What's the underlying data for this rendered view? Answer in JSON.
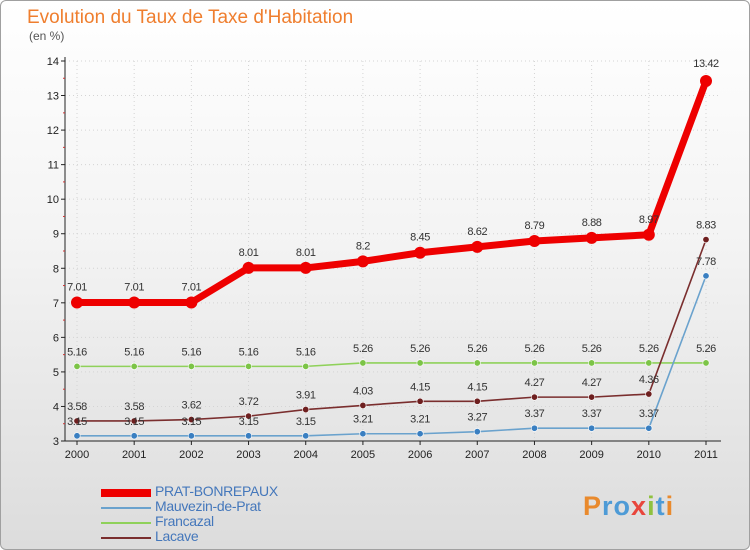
{
  "title": "Evolution du Taux de Taxe d'Habitation",
  "unit": "(en %)",
  "brand": {
    "name": "Proxiti",
    "letter_colors": [
      "#e98a2d",
      "#4e9bd6",
      "#4e9bd6",
      "#e8463c",
      "#8fc13f",
      "#4e9bd6",
      "#e98a2d"
    ]
  },
  "chart_data": {
    "type": "line",
    "title": "Evolution du Taux de Taxe d'Habitation",
    "ylabel": "(en %)",
    "xlabel": "",
    "x": [
      "2000",
      "2001",
      "2002",
      "2003",
      "2004",
      "2005",
      "2006",
      "2007",
      "2008",
      "2009",
      "2010",
      "2011"
    ],
    "ylim": [
      3,
      14
    ],
    "yticks": [
      "3",
      "4",
      "5",
      "6",
      "7",
      "8",
      "9",
      "10",
      "11",
      "12",
      "13",
      "14"
    ],
    "grid": true,
    "legend_position": "bottom-left",
    "series": [
      {
        "name": "PRAT-BONREPAUX",
        "color": "#ee0000",
        "marker_color": "#ee0000",
        "thick": true,
        "values": [
          7.01,
          7.01,
          7.01,
          8.01,
          8.01,
          8.2,
          8.45,
          8.62,
          8.79,
          8.88,
          8.97,
          13.42
        ],
        "labels": [
          "7.01",
          "7.01",
          "7.01",
          "8.01",
          "8.01",
          "8.2",
          "8.45",
          "8.62",
          "8.79",
          "8.88",
          "8.97",
          "13.42"
        ]
      },
      {
        "name": "Mauvezin-de-Prat",
        "color": "#6aa2cd",
        "marker_color": "#3a7fc1",
        "thick": false,
        "values": [
          3.15,
          3.15,
          3.15,
          3.15,
          3.15,
          3.21,
          3.21,
          3.27,
          3.37,
          3.37,
          3.37,
          7.78
        ],
        "labels": [
          "3.15",
          "3.15",
          "3.15",
          "3.15",
          "3.15",
          "3.21",
          "3.21",
          "3.27",
          "3.37",
          "3.37",
          "3.37",
          "7.78"
        ]
      },
      {
        "name": "Francazal",
        "color": "#8fd15a",
        "marker_color": "#7cc447",
        "thick": false,
        "values": [
          5.16,
          5.16,
          5.16,
          5.16,
          5.16,
          5.26,
          5.26,
          5.26,
          5.26,
          5.26,
          5.26,
          5.26
        ],
        "labels": [
          "5.16",
          "5.16",
          "5.16",
          "5.16",
          "5.16",
          "5.26",
          "5.26",
          "5.26",
          "5.26",
          "5.26",
          "5.26",
          "5.26"
        ]
      },
      {
        "name": "Lacave",
        "color": "#7a2e2e",
        "marker_color": "#6e1f1f",
        "thick": false,
        "values": [
          3.58,
          3.58,
          3.62,
          3.72,
          3.91,
          4.03,
          4.15,
          4.15,
          4.27,
          4.27,
          4.36,
          8.83
        ],
        "labels": [
          "3.58",
          "3.58",
          "3.62",
          "3.72",
          "3.91",
          "4.03",
          "4.15",
          "4.15",
          "4.27",
          "4.27",
          "4.36",
          "8.83"
        ]
      }
    ]
  }
}
